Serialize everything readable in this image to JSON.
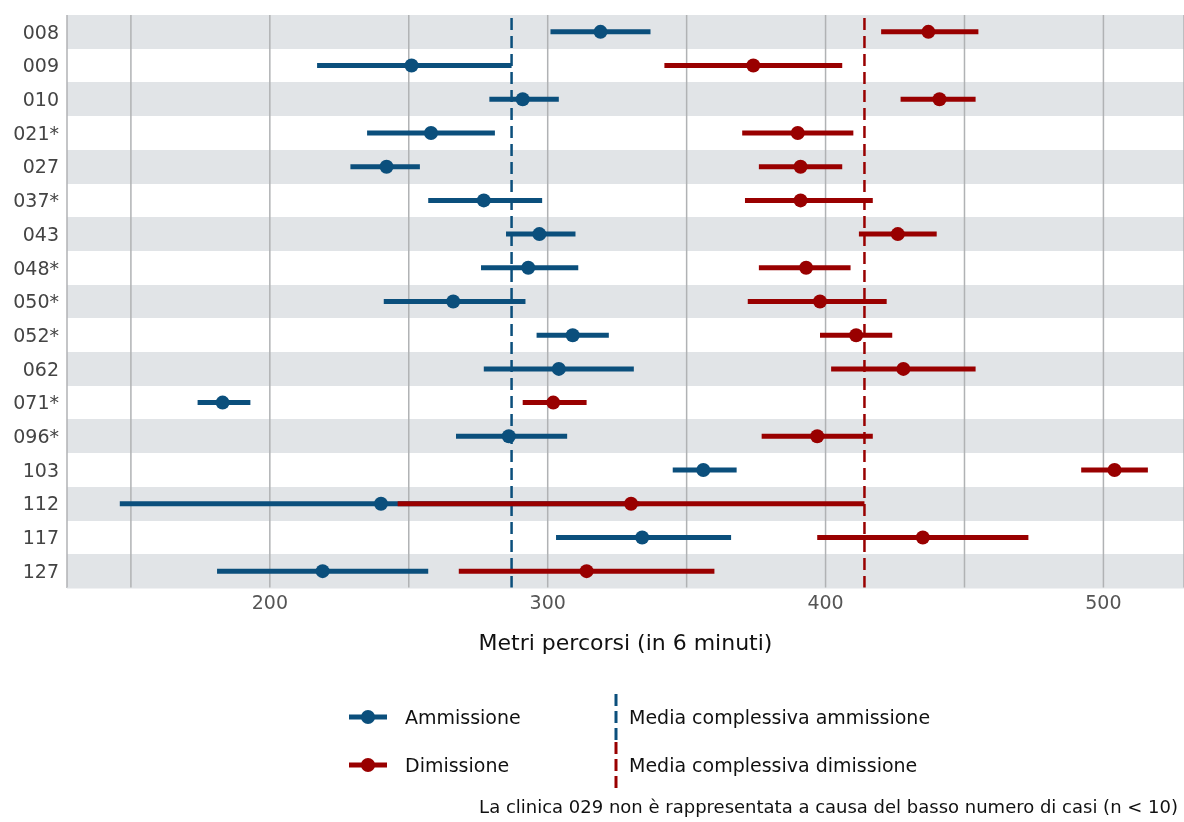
{
  "chart_data": {
    "type": "scatter",
    "orientation": "horizontal",
    "xlabel": "Metri percorsi (in 6 minuti)",
    "categories": [
      "008",
      "009",
      "010",
      "021*",
      "027",
      "037*",
      "043",
      "048*",
      "050*",
      "052*",
      "062",
      "071*",
      "096*",
      "103",
      "112",
      "117",
      "127"
    ],
    "series": [
      {
        "name": "Ammissione",
        "color": "#0b4f7c",
        "values": [
          319,
          251,
          291,
          258,
          242,
          277,
          297,
          293,
          266,
          309,
          304,
          183,
          286,
          356,
          240,
          334,
          219
        ],
        "errors": [
          [
            301,
            337
          ],
          [
            217,
            287
          ],
          [
            279,
            304
          ],
          [
            235,
            281
          ],
          [
            229,
            254
          ],
          [
            257,
            298
          ],
          [
            285,
            310
          ],
          [
            276,
            311
          ],
          [
            241,
            292
          ],
          [
            296,
            322
          ],
          [
            277,
            331
          ],
          [
            174,
            193
          ],
          [
            267,
            307
          ],
          [
            345,
            368
          ],
          [
            146,
            333
          ],
          [
            303,
            366
          ],
          [
            181,
            257
          ]
        ]
      },
      {
        "name": "Dimissione",
        "color": "#990000",
        "values": [
          437,
          374,
          441,
          390,
          391,
          391,
          426,
          393,
          398,
          411,
          428,
          302,
          397,
          504,
          330,
          435,
          314
        ],
        "errors": [
          [
            420,
            455
          ],
          [
            342,
            406
          ],
          [
            427,
            454
          ],
          [
            370,
            410
          ],
          [
            376,
            406
          ],
          [
            371,
            417
          ],
          [
            412,
            440
          ],
          [
            376,
            409
          ],
          [
            372,
            422
          ],
          [
            398,
            424
          ],
          [
            402,
            454
          ],
          [
            291,
            314
          ],
          [
            377,
            417
          ],
          [
            492,
            516
          ],
          [
            246,
            414
          ],
          [
            397,
            473
          ],
          [
            268,
            360
          ]
        ]
      }
    ],
    "ref_lines": [
      {
        "axis": "x",
        "value": 287,
        "label": "Media complessiva ammissione",
        "color": "#0b4f7c",
        "line_style": "dashed"
      },
      {
        "axis": "x",
        "value": 414,
        "label": "Media complessiva dimissione",
        "color": "#990000",
        "line_style": "dashed"
      }
    ],
    "xlim": [
      127,
      529
    ],
    "xticks": [
      {
        "value": 150,
        "label": null
      },
      200,
      {
        "value": 250,
        "label": null
      },
      300,
      {
        "value": 350,
        "label": null
      },
      400,
      {
        "value": 450,
        "label": null
      },
      500
    ],
    "grid": "x",
    "legend": "bottom",
    "marker": "circle",
    "annotations": [
      "La clinica 029 non è rappresentata a causa del basso numero di casi (n < 10)"
    ]
  }
}
